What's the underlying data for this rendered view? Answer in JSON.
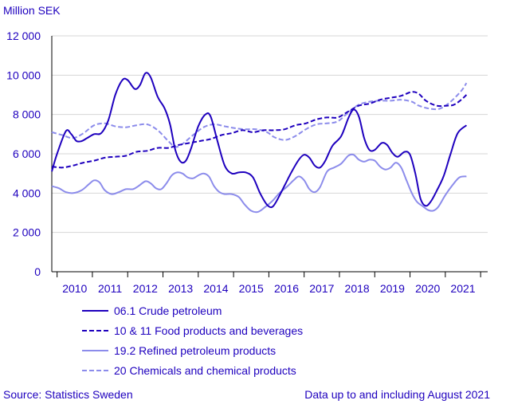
{
  "chart_data": {
    "type": "line",
    "ylabel": "Million SEK",
    "ylim": [
      0,
      12000
    ],
    "yticks": [
      0,
      2000,
      4000,
      6000,
      8000,
      10000,
      12000
    ],
    "ytick_labels": [
      "0",
      "2 000",
      "4 000",
      "6 000",
      "8 000",
      "10 000",
      "12 000"
    ],
    "xlim": [
      2009.6,
      2021.95
    ],
    "xtick_labels": [
      "2010",
      "2011",
      "2012",
      "2013",
      "2014",
      "2015",
      "2016",
      "2017",
      "2018",
      "2019",
      "2020",
      "2021"
    ],
    "grid": "horizontal",
    "legend_position": "bottom",
    "series": [
      {
        "name": "06.1 Crude petroleum",
        "color": "#1e00be",
        "dash": "solid",
        "points": [
          [
            2009.6,
            5100
          ],
          [
            2009.75,
            6000
          ],
          [
            2010.0,
            7150
          ],
          [
            2010.15,
            7000
          ],
          [
            2010.3,
            6650
          ],
          [
            2010.45,
            6650
          ],
          [
            2010.6,
            6800
          ],
          [
            2010.8,
            7000
          ],
          [
            2011.0,
            7050
          ],
          [
            2011.2,
            7700
          ],
          [
            2011.4,
            9000
          ],
          [
            2011.6,
            9750
          ],
          [
            2011.75,
            9750
          ],
          [
            2011.95,
            9300
          ],
          [
            2012.1,
            9500
          ],
          [
            2012.25,
            10100
          ],
          [
            2012.4,
            9900
          ],
          [
            2012.6,
            8900
          ],
          [
            2012.8,
            8300
          ],
          [
            2012.95,
            7500
          ],
          [
            2013.1,
            6200
          ],
          [
            2013.25,
            5600
          ],
          [
            2013.4,
            5650
          ],
          [
            2013.55,
            6300
          ],
          [
            2013.75,
            7400
          ],
          [
            2013.95,
            8000
          ],
          [
            2014.1,
            7900
          ],
          [
            2014.3,
            6600
          ],
          [
            2014.5,
            5400
          ],
          [
            2014.7,
            5000
          ],
          [
            2014.9,
            5050
          ],
          [
            2015.1,
            5050
          ],
          [
            2015.3,
            4800
          ],
          [
            2015.5,
            4000
          ],
          [
            2015.7,
            3400
          ],
          [
            2015.85,
            3300
          ],
          [
            2016.0,
            3700
          ],
          [
            2016.2,
            4400
          ],
          [
            2016.4,
            5100
          ],
          [
            2016.6,
            5700
          ],
          [
            2016.75,
            5950
          ],
          [
            2016.9,
            5800
          ],
          [
            2017.05,
            5400
          ],
          [
            2017.2,
            5300
          ],
          [
            2017.35,
            5650
          ],
          [
            2017.55,
            6400
          ],
          [
            2017.8,
            6900
          ],
          [
            2018.0,
            7800
          ],
          [
            2018.15,
            8250
          ],
          [
            2018.3,
            7900
          ],
          [
            2018.45,
            6800
          ],
          [
            2018.6,
            6200
          ],
          [
            2018.75,
            6200
          ],
          [
            2018.95,
            6550
          ],
          [
            2019.1,
            6450
          ],
          [
            2019.25,
            6050
          ],
          [
            2019.4,
            5850
          ],
          [
            2019.6,
            6100
          ],
          [
            2019.75,
            5950
          ],
          [
            2019.9,
            5000
          ],
          [
            2020.05,
            3700
          ],
          [
            2020.2,
            3350
          ],
          [
            2020.35,
            3600
          ],
          [
            2020.5,
            4100
          ],
          [
            2020.7,
            4850
          ],
          [
            2020.9,
            6000
          ],
          [
            2021.1,
            7050
          ],
          [
            2021.35,
            7450
          ]
        ]
      },
      {
        "name": "10 & 11 Food products and beverages",
        "color": "#1e00be",
        "dash": "6,3",
        "points": [
          [
            2009.6,
            5350
          ],
          [
            2009.9,
            5300
          ],
          [
            2010.2,
            5400
          ],
          [
            2010.5,
            5550
          ],
          [
            2010.8,
            5650
          ],
          [
            2011.1,
            5800
          ],
          [
            2011.4,
            5850
          ],
          [
            2011.7,
            5900
          ],
          [
            2012.0,
            6100
          ],
          [
            2012.3,
            6150
          ],
          [
            2012.6,
            6300
          ],
          [
            2012.9,
            6300
          ],
          [
            2013.2,
            6450
          ],
          [
            2013.5,
            6550
          ],
          [
            2013.8,
            6650
          ],
          [
            2014.1,
            6750
          ],
          [
            2014.4,
            6950
          ],
          [
            2014.7,
            7050
          ],
          [
            2015.0,
            7200
          ],
          [
            2015.3,
            7100
          ],
          [
            2015.6,
            7200
          ],
          [
            2015.9,
            7200
          ],
          [
            2016.2,
            7250
          ],
          [
            2016.5,
            7450
          ],
          [
            2016.8,
            7550
          ],
          [
            2017.1,
            7750
          ],
          [
            2017.4,
            7850
          ],
          [
            2017.7,
            7850
          ],
          [
            2018.0,
            8150
          ],
          [
            2018.3,
            8450
          ],
          [
            2018.6,
            8550
          ],
          [
            2018.9,
            8750
          ],
          [
            2019.2,
            8850
          ],
          [
            2019.5,
            8950
          ],
          [
            2019.8,
            9150
          ],
          [
            2020.0,
            9050
          ],
          [
            2020.2,
            8700
          ],
          [
            2020.5,
            8450
          ],
          [
            2020.8,
            8450
          ],
          [
            2021.0,
            8500
          ],
          [
            2021.2,
            8750
          ],
          [
            2021.35,
            9000
          ]
        ]
      },
      {
        "name": "19.2 Refined petroleum products",
        "color": "#8c8ceb",
        "dash": "solid",
        "points": [
          [
            2009.6,
            4350
          ],
          [
            2009.8,
            4250
          ],
          [
            2010.0,
            4050
          ],
          [
            2010.2,
            4000
          ],
          [
            2010.45,
            4150
          ],
          [
            2010.65,
            4450
          ],
          [
            2010.8,
            4650
          ],
          [
            2010.95,
            4550
          ],
          [
            2011.1,
            4150
          ],
          [
            2011.3,
            3950
          ],
          [
            2011.5,
            4050
          ],
          [
            2011.7,
            4200
          ],
          [
            2011.9,
            4200
          ],
          [
            2012.05,
            4350
          ],
          [
            2012.25,
            4600
          ],
          [
            2012.4,
            4500
          ],
          [
            2012.55,
            4250
          ],
          [
            2012.7,
            4200
          ],
          [
            2012.85,
            4500
          ],
          [
            2013.0,
            4900
          ],
          [
            2013.15,
            5050
          ],
          [
            2013.3,
            5000
          ],
          [
            2013.45,
            4800
          ],
          [
            2013.6,
            4750
          ],
          [
            2013.75,
            4900
          ],
          [
            2013.9,
            5000
          ],
          [
            2014.05,
            4850
          ],
          [
            2014.2,
            4350
          ],
          [
            2014.35,
            4050
          ],
          [
            2014.5,
            3950
          ],
          [
            2014.7,
            3950
          ],
          [
            2014.9,
            3800
          ],
          [
            2015.05,
            3450
          ],
          [
            2015.25,
            3100
          ],
          [
            2015.45,
            3050
          ],
          [
            2015.65,
            3300
          ],
          [
            2015.85,
            3600
          ],
          [
            2016.05,
            4000
          ],
          [
            2016.25,
            4300
          ],
          [
            2016.45,
            4650
          ],
          [
            2016.6,
            4850
          ],
          [
            2016.75,
            4650
          ],
          [
            2016.9,
            4200
          ],
          [
            2017.05,
            4050
          ],
          [
            2017.2,
            4300
          ],
          [
            2017.4,
            5100
          ],
          [
            2017.6,
            5300
          ],
          [
            2017.8,
            5500
          ],
          [
            2018.0,
            5900
          ],
          [
            2018.15,
            5950
          ],
          [
            2018.3,
            5700
          ],
          [
            2018.45,
            5600
          ],
          [
            2018.6,
            5700
          ],
          [
            2018.75,
            5650
          ],
          [
            2018.9,
            5350
          ],
          [
            2019.05,
            5200
          ],
          [
            2019.2,
            5300
          ],
          [
            2019.35,
            5550
          ],
          [
            2019.5,
            5300
          ],
          [
            2019.65,
            4650
          ],
          [
            2019.8,
            4000
          ],
          [
            2019.95,
            3550
          ],
          [
            2020.1,
            3350
          ],
          [
            2020.25,
            3150
          ],
          [
            2020.4,
            3100
          ],
          [
            2020.55,
            3300
          ],
          [
            2020.75,
            3900
          ],
          [
            2020.95,
            4400
          ],
          [
            2021.15,
            4800
          ],
          [
            2021.35,
            4850
          ]
        ]
      },
      {
        "name": "20 Chemicals and chemical products",
        "color": "#8c8ceb",
        "dash": "6,3",
        "points": [
          [
            2009.6,
            7100
          ],
          [
            2009.9,
            6950
          ],
          [
            2010.2,
            6800
          ],
          [
            2010.5,
            7050
          ],
          [
            2010.8,
            7450
          ],
          [
            2011.1,
            7550
          ],
          [
            2011.4,
            7400
          ],
          [
            2011.7,
            7350
          ],
          [
            2012.0,
            7450
          ],
          [
            2012.3,
            7500
          ],
          [
            2012.6,
            7200
          ],
          [
            2012.9,
            6650
          ],
          [
            2013.1,
            6350
          ],
          [
            2013.3,
            6500
          ],
          [
            2013.6,
            6950
          ],
          [
            2013.9,
            7350
          ],
          [
            2014.2,
            7500
          ],
          [
            2014.5,
            7400
          ],
          [
            2014.8,
            7300
          ],
          [
            2015.1,
            7250
          ],
          [
            2015.4,
            7250
          ],
          [
            2015.7,
            7100
          ],
          [
            2015.9,
            6850
          ],
          [
            2016.2,
            6700
          ],
          [
            2016.5,
            6900
          ],
          [
            2016.8,
            7250
          ],
          [
            2017.1,
            7500
          ],
          [
            2017.4,
            7550
          ],
          [
            2017.7,
            7650
          ],
          [
            2018.0,
            8100
          ],
          [
            2018.3,
            8500
          ],
          [
            2018.6,
            8650
          ],
          [
            2018.9,
            8700
          ],
          [
            2019.2,
            8700
          ],
          [
            2019.5,
            8750
          ],
          [
            2019.8,
            8650
          ],
          [
            2020.0,
            8450
          ],
          [
            2020.3,
            8300
          ],
          [
            2020.6,
            8300
          ],
          [
            2020.9,
            8650
          ],
          [
            2021.2,
            9200
          ],
          [
            2021.35,
            9600
          ]
        ]
      }
    ]
  },
  "footer": {
    "source": "Source: Statistics Sweden",
    "note": "Data up to and including August 2021"
  }
}
